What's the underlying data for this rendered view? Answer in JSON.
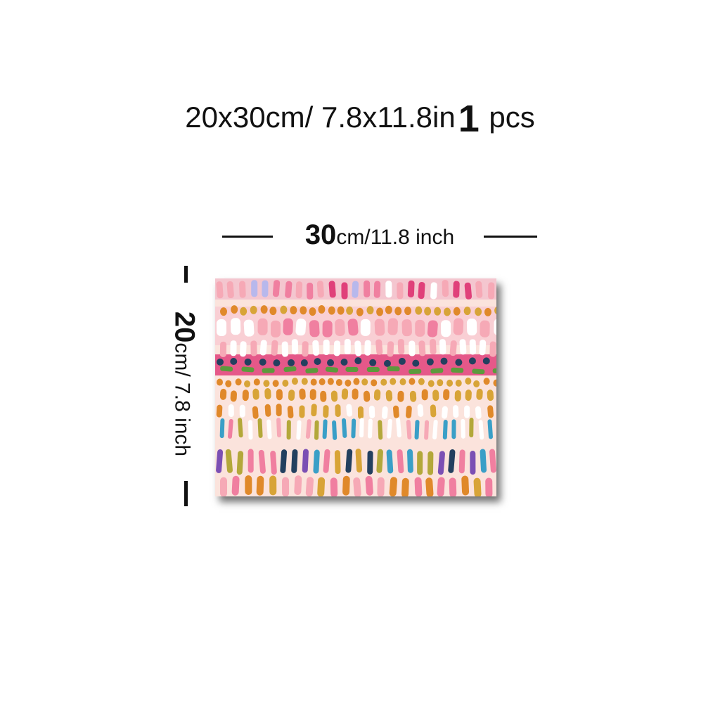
{
  "header": {
    "size_text": "20x30cm/ 7.8x11.8in",
    "quantity": "1",
    "unit": "pcs"
  },
  "dimensions": {
    "width_value": "30",
    "width_unit": "cm/11.8 inch",
    "height_value": "20",
    "height_unit": "cm/ 7.8 inch"
  },
  "artwork": {
    "colors": {
      "background": "#fbe3dc",
      "pink": "#f07fa0",
      "light_pink": "#f6a9b6",
      "magenta": "#e0407a",
      "orange": "#e0892a",
      "mustard": "#d8a437",
      "olive": "#b3a83a",
      "teal": "#3a9fc7",
      "navy": "#23405f",
      "green": "#5c9a3c",
      "purple": "#7b4fb4",
      "lavender": "#b8b8ec",
      "white": "#ffffff"
    }
  }
}
